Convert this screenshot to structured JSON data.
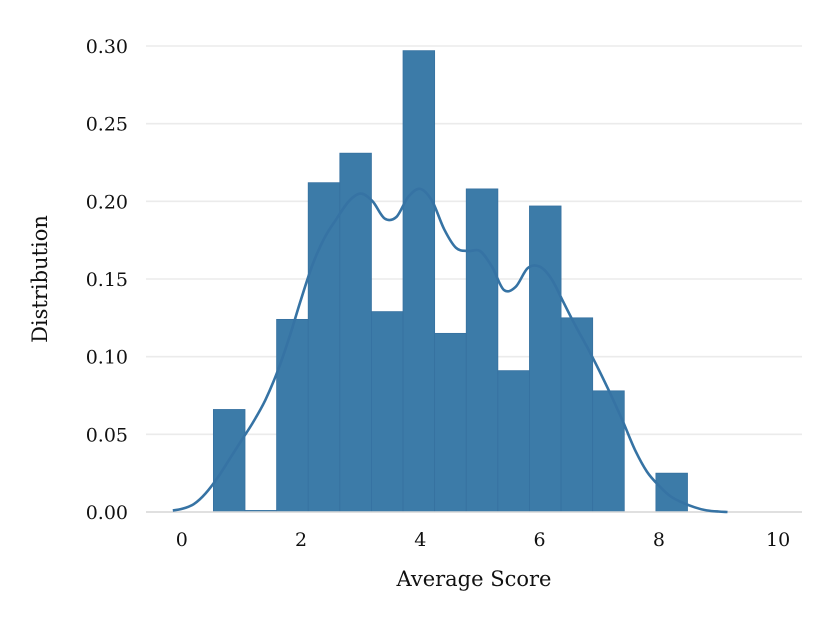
{
  "chart_data": {
    "type": "histogram",
    "xlabel": "Average Score",
    "ylabel": "Distribution",
    "xlim": [
      -0.6,
      10.4
    ],
    "ylim": [
      0,
      0.3
    ],
    "x_ticks": [
      0,
      2,
      4,
      6,
      8,
      10
    ],
    "y_ticks": [
      0.0,
      0.05,
      0.1,
      0.15,
      0.2,
      0.25,
      0.3
    ],
    "x_tick_labels": [
      "0",
      "2",
      "4",
      "6",
      "8",
      "10"
    ],
    "y_tick_labels": [
      "0.00",
      "0.05",
      "0.10",
      "0.15",
      "0.20",
      "0.25",
      "0.30"
    ],
    "grid": "horizontal",
    "bar_color": "#3c7ba8",
    "kde_color": "#3673a4",
    "bins": [
      {
        "x0": 0.53,
        "x1": 1.06,
        "value": 0.066
      },
      {
        "x0": 1.06,
        "x1": 1.59,
        "value": 0.001
      },
      {
        "x0": 1.59,
        "x1": 2.12,
        "value": 0.124
      },
      {
        "x0": 2.12,
        "x1": 2.65,
        "value": 0.212
      },
      {
        "x0": 2.65,
        "x1": 3.18,
        "value": 0.231
      },
      {
        "x0": 3.18,
        "x1": 3.71,
        "value": 0.129
      },
      {
        "x0": 3.71,
        "x1": 4.24,
        "value": 0.297
      },
      {
        "x0": 4.24,
        "x1": 4.77,
        "value": 0.115
      },
      {
        "x0": 4.77,
        "x1": 5.3,
        "value": 0.208
      },
      {
        "x0": 5.3,
        "x1": 5.83,
        "value": 0.091
      },
      {
        "x0": 5.83,
        "x1": 6.36,
        "value": 0.197
      },
      {
        "x0": 6.36,
        "x1": 6.89,
        "value": 0.125
      },
      {
        "x0": 6.89,
        "x1": 7.42,
        "value": 0.078
      },
      {
        "x0": 7.42,
        "x1": 7.95,
        "value": 0.0
      },
      {
        "x0": 7.95,
        "x1": 8.48,
        "value": 0.025
      }
    ],
    "kde": {
      "x": [
        -0.15,
        0.0,
        0.2,
        0.4,
        0.6,
        0.8,
        1.0,
        1.2,
        1.4,
        1.6,
        1.8,
        2.0,
        2.2,
        2.4,
        2.6,
        2.8,
        3.0,
        3.2,
        3.4,
        3.6,
        3.8,
        4.0,
        4.2,
        4.4,
        4.6,
        4.8,
        5.0,
        5.2,
        5.4,
        5.6,
        5.8,
        6.0,
        6.2,
        6.4,
        6.6,
        6.8,
        7.0,
        7.2,
        7.4,
        7.6,
        7.8,
        8.0,
        8.2,
        8.4,
        8.6,
        8.8,
        9.0,
        9.15
      ],
      "y": [
        0.001,
        0.002,
        0.005,
        0.012,
        0.022,
        0.034,
        0.046,
        0.058,
        0.072,
        0.09,
        0.112,
        0.137,
        0.16,
        0.177,
        0.189,
        0.2,
        0.205,
        0.2,
        0.189,
        0.19,
        0.203,
        0.208,
        0.2,
        0.182,
        0.17,
        0.168,
        0.168,
        0.158,
        0.143,
        0.145,
        0.157,
        0.158,
        0.15,
        0.135,
        0.12,
        0.106,
        0.091,
        0.075,
        0.058,
        0.04,
        0.026,
        0.017,
        0.01,
        0.006,
        0.003,
        0.001,
        0.0003,
        0.0
      ]
    }
  }
}
